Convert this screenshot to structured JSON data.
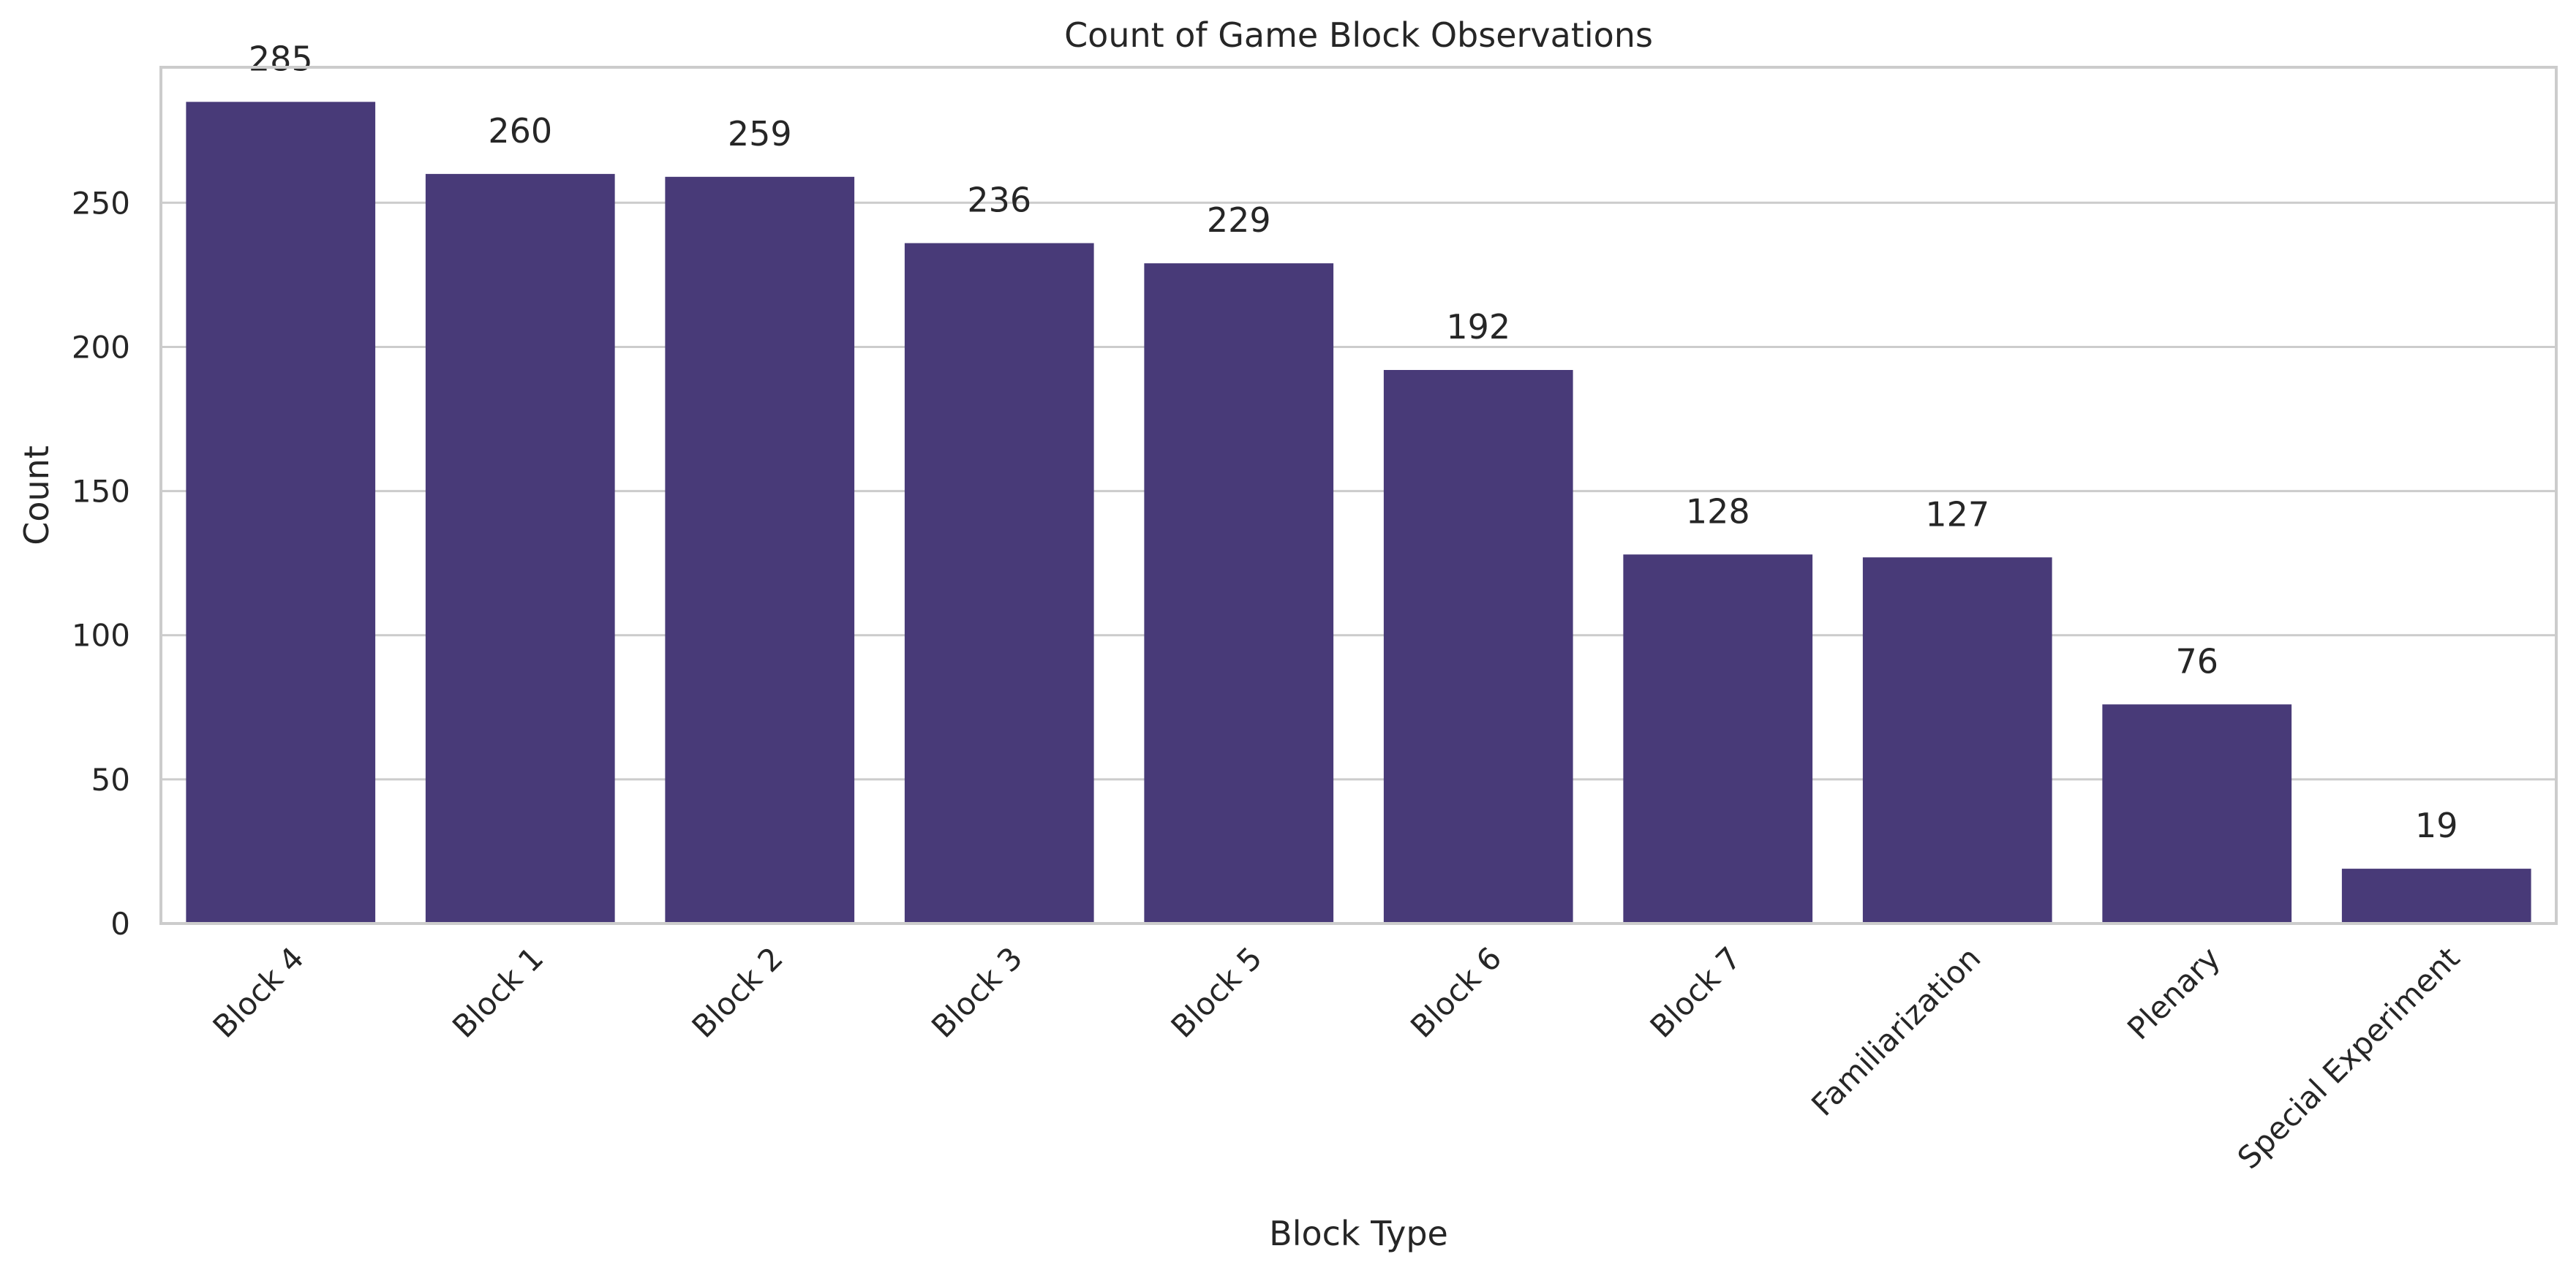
{
  "chart_data": {
    "type": "bar",
    "title": "Count of Game Block Observations",
    "xlabel": "Block Type",
    "ylabel": "Count",
    "categories": [
      "Block 4",
      "Block 1",
      "Block 2",
      "Block 3",
      "Block 5",
      "Block 6",
      "Block 7",
      "Familiarization",
      "Plenary",
      "Special Experiment"
    ],
    "values": [
      285,
      260,
      259,
      236,
      229,
      192,
      128,
      127,
      76,
      19
    ],
    "ylim": [
      0,
      297
    ],
    "yticks": [
      0,
      50,
      100,
      150,
      200,
      250
    ],
    "grid": "horizontal",
    "bar_color": "#483a78",
    "data_labels": true
  }
}
